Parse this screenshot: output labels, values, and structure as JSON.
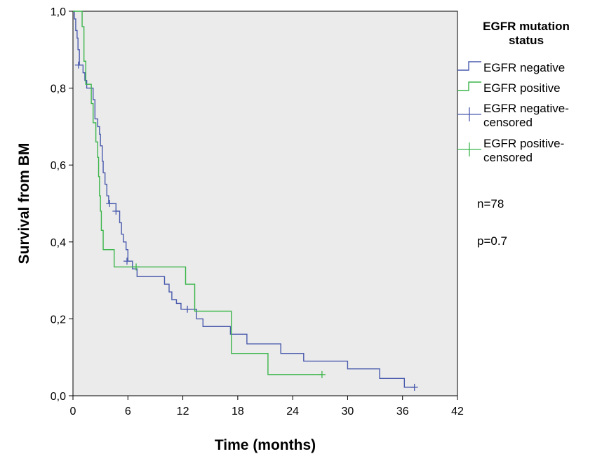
{
  "chart_data": {
    "type": "line",
    "subtype": "kaplan-meier",
    "title": "",
    "xlabel": "Time (months)",
    "ylabel": "Survival from BM",
    "xlim": [
      0,
      42
    ],
    "ylim": [
      0.0,
      1.0
    ],
    "xticks": [
      "0",
      "6",
      "12",
      "18",
      "24",
      "30",
      "36",
      "42"
    ],
    "xtick_values": [
      0,
      6,
      12,
      18,
      24,
      30,
      36,
      42
    ],
    "yticks": [
      "0,0",
      "0,2",
      "0,4",
      "0,6",
      "0,8",
      "1,0"
    ],
    "ytick_values": [
      0.0,
      0.2,
      0.4,
      0.6,
      0.8,
      1.0
    ],
    "grid": false,
    "plot_background": "#ebebeb",
    "legend": {
      "title": "EGFR mutation status",
      "title_lines": [
        "EGFR mutation",
        "status"
      ],
      "placement": "right",
      "entries": [
        {
          "label_lines": [
            "EGFR negative"
          ],
          "kind": "line",
          "color": "#4a5bad"
        },
        {
          "label_lines": [
            "EGFR positive"
          ],
          "kind": "line",
          "color": "#3bb54a"
        },
        {
          "label_lines": [
            "EGFR negative-",
            "censored"
          ],
          "kind": "censor",
          "color": "#4a5bad"
        },
        {
          "label_lines": [
            "EGFR positive-",
            "censored"
          ],
          "kind": "censor",
          "color": "#3bb54a"
        }
      ]
    },
    "annotations": [
      "n=78",
      "p=0.7"
    ],
    "series": [
      {
        "name": "EGFR negative",
        "color": "#4a5bad",
        "steps": [
          [
            0,
            1.0
          ],
          [
            0.15,
            0.98
          ],
          [
            0.3,
            0.95
          ],
          [
            0.45,
            0.93
          ],
          [
            0.55,
            0.9
          ],
          [
            0.7,
            0.86
          ],
          [
            1.1,
            0.84
          ],
          [
            1.3,
            0.82
          ],
          [
            1.5,
            0.8
          ],
          [
            2.2,
            0.77
          ],
          [
            2.4,
            0.72
          ],
          [
            2.7,
            0.7
          ],
          [
            2.9,
            0.68
          ],
          [
            3.0,
            0.65
          ],
          [
            3.2,
            0.61
          ],
          [
            3.3,
            0.58
          ],
          [
            3.5,
            0.55
          ],
          [
            3.7,
            0.52
          ],
          [
            3.9,
            0.5
          ],
          [
            4.7,
            0.48
          ],
          [
            5.1,
            0.45
          ],
          [
            5.3,
            0.42
          ],
          [
            5.5,
            0.4
          ],
          [
            5.8,
            0.38
          ],
          [
            6.0,
            0.35
          ],
          [
            6.5,
            0.33
          ],
          [
            7.0,
            0.31
          ],
          [
            10.0,
            0.29
          ],
          [
            10.5,
            0.27
          ],
          [
            10.8,
            0.25
          ],
          [
            11.3,
            0.24
          ],
          [
            11.8,
            0.225
          ],
          [
            13.5,
            0.2
          ],
          [
            14.2,
            0.18
          ],
          [
            17.2,
            0.16
          ],
          [
            19.0,
            0.135
          ],
          [
            22.7,
            0.11
          ],
          [
            25.2,
            0.09
          ],
          [
            30.0,
            0.07
          ],
          [
            33.5,
            0.045
          ],
          [
            36.2,
            0.022
          ],
          [
            37.3,
            0.022
          ]
        ],
        "censored": [
          [
            0.6,
            0.86
          ],
          [
            4.0,
            0.5
          ],
          [
            4.7,
            0.48
          ],
          [
            5.9,
            0.35
          ],
          [
            12.5,
            0.225
          ],
          [
            37.3,
            0.022
          ]
        ]
      },
      {
        "name": "EGFR positive",
        "color": "#3bb54a",
        "steps": [
          [
            0,
            1.0
          ],
          [
            0.9,
            1.0
          ],
          [
            1.0,
            0.96
          ],
          [
            1.2,
            0.87
          ],
          [
            1.4,
            0.81
          ],
          [
            2.0,
            0.76
          ],
          [
            2.2,
            0.71
          ],
          [
            2.5,
            0.66
          ],
          [
            2.7,
            0.62
          ],
          [
            2.8,
            0.57
          ],
          [
            2.9,
            0.52
          ],
          [
            3.0,
            0.48
          ],
          [
            3.1,
            0.43
          ],
          [
            3.3,
            0.38
          ],
          [
            4.5,
            0.335
          ],
          [
            12.3,
            0.29
          ],
          [
            13.3,
            0.22
          ],
          [
            17.3,
            0.11
          ],
          [
            21.3,
            0.055
          ],
          [
            27.2,
            0.055
          ]
        ],
        "censored": [
          [
            6.9,
            0.335
          ],
          [
            27.2,
            0.055
          ]
        ]
      }
    ]
  }
}
